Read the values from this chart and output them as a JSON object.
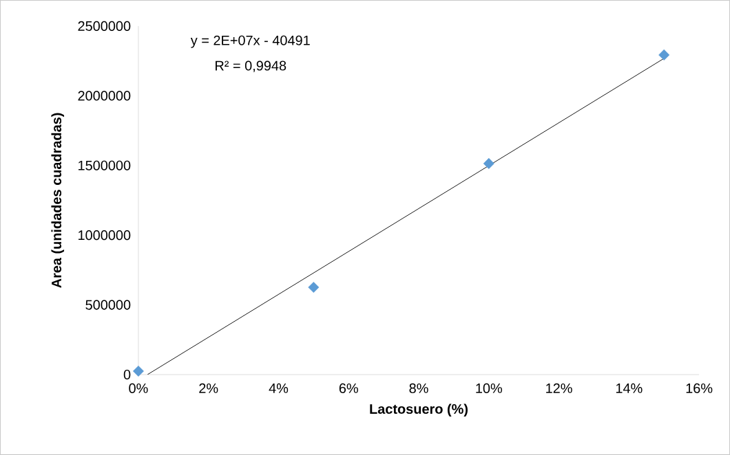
{
  "chart_data": {
    "type": "scatter",
    "xlabel": "Lactosuero (%)",
    "ylabel": "Area (unidades cuadradas)",
    "annotations": [
      "y = 2E+07x - 40491",
      "R² = 0,9948"
    ],
    "x": [
      0,
      5,
      10,
      15
    ],
    "series": [
      {
        "color": "#5b9bd5",
        "marker": "diamond",
        "values": [
          25000,
          626000,
          1514000,
          2293000
        ]
      },
      {
        "type": "line",
        "color": "#000000",
        "marker": "none",
        "line_style": "solid",
        "x": [
          0.26,
          15
        ],
        "values": [
          0,
          2268000
        ]
      }
    ],
    "xlim": [
      0,
      16
    ],
    "xticks": [
      {
        "value": 0,
        "label": "0%"
      },
      {
        "value": 2,
        "label": "2%"
      },
      {
        "value": 4,
        "label": "4%"
      },
      {
        "value": 6,
        "label": "6%"
      },
      {
        "value": 8,
        "label": "8%"
      },
      {
        "value": 10,
        "label": "10%"
      },
      {
        "value": 12,
        "label": "12%"
      },
      {
        "value": 14,
        "label": "14%"
      },
      {
        "value": 16,
        "label": "16%"
      }
    ],
    "ylim": [
      0,
      2500000
    ],
    "yticks": [
      0,
      500000,
      1000000,
      1500000,
      2000000,
      2500000
    ],
    "grid": false
  }
}
